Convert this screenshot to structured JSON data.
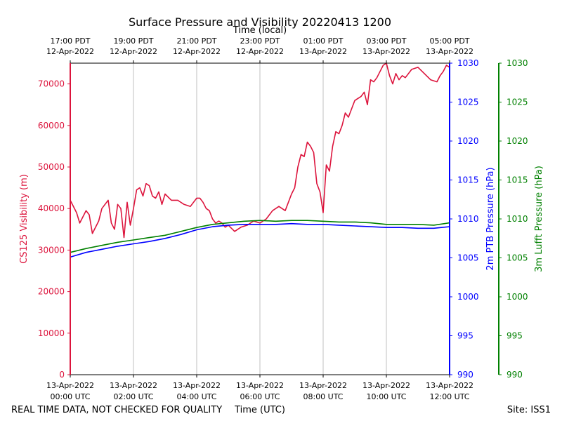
{
  "chart_data": {
    "type": "line",
    "title": "Surface Pressure and Visibility 20220413 1200",
    "top_xlabel": "Time (local)",
    "xlabel": "Time (UTC)",
    "footer_left": "REAL TIME DATA, NOT CHECKED FOR QUALITY",
    "footer_right": "Site: ISS1",
    "x_range_hours": [
      0,
      12
    ],
    "bottom_ticks": [
      {
        "hour": 0,
        "line1": "13-Apr-2022",
        "line2": "00:00 UTC"
      },
      {
        "hour": 2,
        "line1": "13-Apr-2022",
        "line2": "02:00 UTC"
      },
      {
        "hour": 4,
        "line1": "13-Apr-2022",
        "line2": "04:00 UTC"
      },
      {
        "hour": 6,
        "line1": "13-Apr-2022",
        "line2": "06:00 UTC"
      },
      {
        "hour": 8,
        "line1": "13-Apr-2022",
        "line2": "08:00 UTC"
      },
      {
        "hour": 10,
        "line1": "13-Apr-2022",
        "line2": "10:00 UTC"
      },
      {
        "hour": 12,
        "line1": "13-Apr-2022",
        "line2": "12:00 UTC"
      }
    ],
    "top_ticks": [
      {
        "hour": 0,
        "line1": "17:00 PDT",
        "line2": "12-Apr-2022"
      },
      {
        "hour": 2,
        "line1": "19:00 PDT",
        "line2": "12-Apr-2022"
      },
      {
        "hour": 4,
        "line1": "21:00 PDT",
        "line2": "12-Apr-2022"
      },
      {
        "hour": 6,
        "line1": "23:00 PDT",
        "line2": "12-Apr-2022"
      },
      {
        "hour": 8,
        "line1": "01:00 PDT",
        "line2": "13-Apr-2022"
      },
      {
        "hour": 10,
        "line1": "03:00 PDT",
        "line2": "13-Apr-2022"
      },
      {
        "hour": 12,
        "line1": "05:00 PDT",
        "line2": "13-Apr-2022"
      }
    ],
    "axes": {
      "left": {
        "label": "CS125 Visibility (m)",
        "ylim": [
          0,
          75000
        ],
        "ticks": [
          0,
          10000,
          20000,
          30000,
          40000,
          50000,
          60000,
          70000
        ],
        "color": "#dc143c"
      },
      "right1": {
        "label": "2m PTB Pressure (hPa)",
        "ylim": [
          990,
          1030
        ],
        "ticks": [
          990,
          995,
          1000,
          1005,
          1010,
          1015,
          1020,
          1025,
          1030
        ],
        "color": "#0000ff"
      },
      "right2": {
        "label": "3m Lufft Pressure (hPa)",
        "ylim": [
          990,
          1030
        ],
        "ticks": [
          990,
          995,
          1000,
          1005,
          1010,
          1015,
          1020,
          1025,
          1030
        ],
        "color": "#008000"
      }
    },
    "series": [
      {
        "name": "CS125 Visibility",
        "axis": "left",
        "color": "#dc143c",
        "x": [
          0.0,
          0.1,
          0.2,
          0.3,
          0.5,
          0.6,
          0.7,
          0.9,
          1.0,
          1.2,
          1.3,
          1.4,
          1.5,
          1.6,
          1.7,
          1.8,
          1.9,
          2.0,
          2.1,
          2.2,
          2.3,
          2.4,
          2.5,
          2.6,
          2.7,
          2.8,
          2.9,
          3.0,
          3.2,
          3.4,
          3.6,
          3.8,
          4.0,
          4.1,
          4.2,
          4.3,
          4.4,
          4.5,
          4.6,
          4.7,
          4.8,
          4.9,
          5.0,
          5.2,
          5.4,
          5.6,
          5.8,
          6.0,
          6.2,
          6.4,
          6.6,
          6.8,
          7.0,
          7.1,
          7.2,
          7.3,
          7.4,
          7.5,
          7.6,
          7.7,
          7.8,
          7.9,
          8.0,
          8.1,
          8.2,
          8.3,
          8.4,
          8.5,
          8.6,
          8.7,
          8.8,
          8.9,
          9.0,
          9.1,
          9.2,
          9.3,
          9.4,
          9.5,
          9.6,
          9.7,
          9.8,
          9.9,
          10.0,
          10.1,
          10.2,
          10.3,
          10.4,
          10.5,
          10.6,
          10.8,
          11.0,
          11.2,
          11.4,
          11.6,
          11.7,
          11.8,
          11.9,
          12.0
        ],
        "values": [
          42000,
          40500,
          39000,
          36500,
          39500,
          38500,
          34000,
          37000,
          40000,
          42000,
          36500,
          35000,
          41000,
          40000,
          33000,
          41500,
          36000,
          40000,
          44500,
          45000,
          43000,
          46000,
          45500,
          43000,
          42500,
          44000,
          41000,
          43500,
          42000,
          42000,
          41000,
          40500,
          42500,
          42500,
          41500,
          40000,
          39500,
          37500,
          36500,
          37000,
          36500,
          35500,
          36000,
          34500,
          35500,
          36000,
          37000,
          36500,
          37500,
          39500,
          40500,
          39500,
          43500,
          45000,
          50000,
          53000,
          52500,
          56000,
          55000,
          53500,
          46000,
          44000,
          39000,
          50500,
          49000,
          55000,
          58500,
          58000,
          60000,
          63000,
          62000,
          64000,
          66000,
          66500,
          67000,
          68000,
          65000,
          71000,
          70500,
          71500,
          73000,
          74500,
          75000,
          72000,
          70000,
          72500,
          71000,
          72000,
          71500,
          73500,
          74000,
          72500,
          71000,
          70500,
          72000,
          73000,
          74500,
          74000
        ]
      },
      {
        "name": "2m PTB Pressure",
        "axis": "right1",
        "color": "#0000ff",
        "x": [
          0.0,
          0.5,
          1.0,
          1.5,
          2.0,
          2.5,
          3.0,
          3.5,
          4.0,
          4.5,
          5.0,
          5.5,
          6.0,
          6.5,
          7.0,
          7.5,
          8.0,
          8.5,
          9.0,
          9.5,
          10.0,
          10.5,
          11.0,
          11.5,
          12.0
        ],
        "values": [
          1005.1,
          1005.7,
          1006.1,
          1006.5,
          1006.8,
          1007.1,
          1007.5,
          1008.0,
          1008.6,
          1009.0,
          1009.2,
          1009.3,
          1009.3,
          1009.3,
          1009.4,
          1009.3,
          1009.3,
          1009.2,
          1009.1,
          1009.0,
          1008.9,
          1008.9,
          1008.8,
          1008.8,
          1009.0
        ]
      },
      {
        "name": "3m Lufft Pressure",
        "axis": "right2",
        "color": "#008000",
        "x": [
          0.0,
          0.5,
          1.0,
          1.5,
          2.0,
          2.5,
          3.0,
          3.5,
          4.0,
          4.5,
          5.0,
          5.5,
          6.0,
          6.5,
          7.0,
          7.5,
          8.0,
          8.5,
          9.0,
          9.5,
          10.0,
          10.5,
          11.0,
          11.5,
          12.0
        ],
        "values": [
          1005.7,
          1006.2,
          1006.6,
          1007.0,
          1007.3,
          1007.6,
          1007.9,
          1008.4,
          1008.9,
          1009.3,
          1009.5,
          1009.7,
          1009.8,
          1009.7,
          1009.8,
          1009.8,
          1009.7,
          1009.6,
          1009.6,
          1009.5,
          1009.3,
          1009.3,
          1009.3,
          1009.2,
          1009.5
        ]
      }
    ]
  }
}
